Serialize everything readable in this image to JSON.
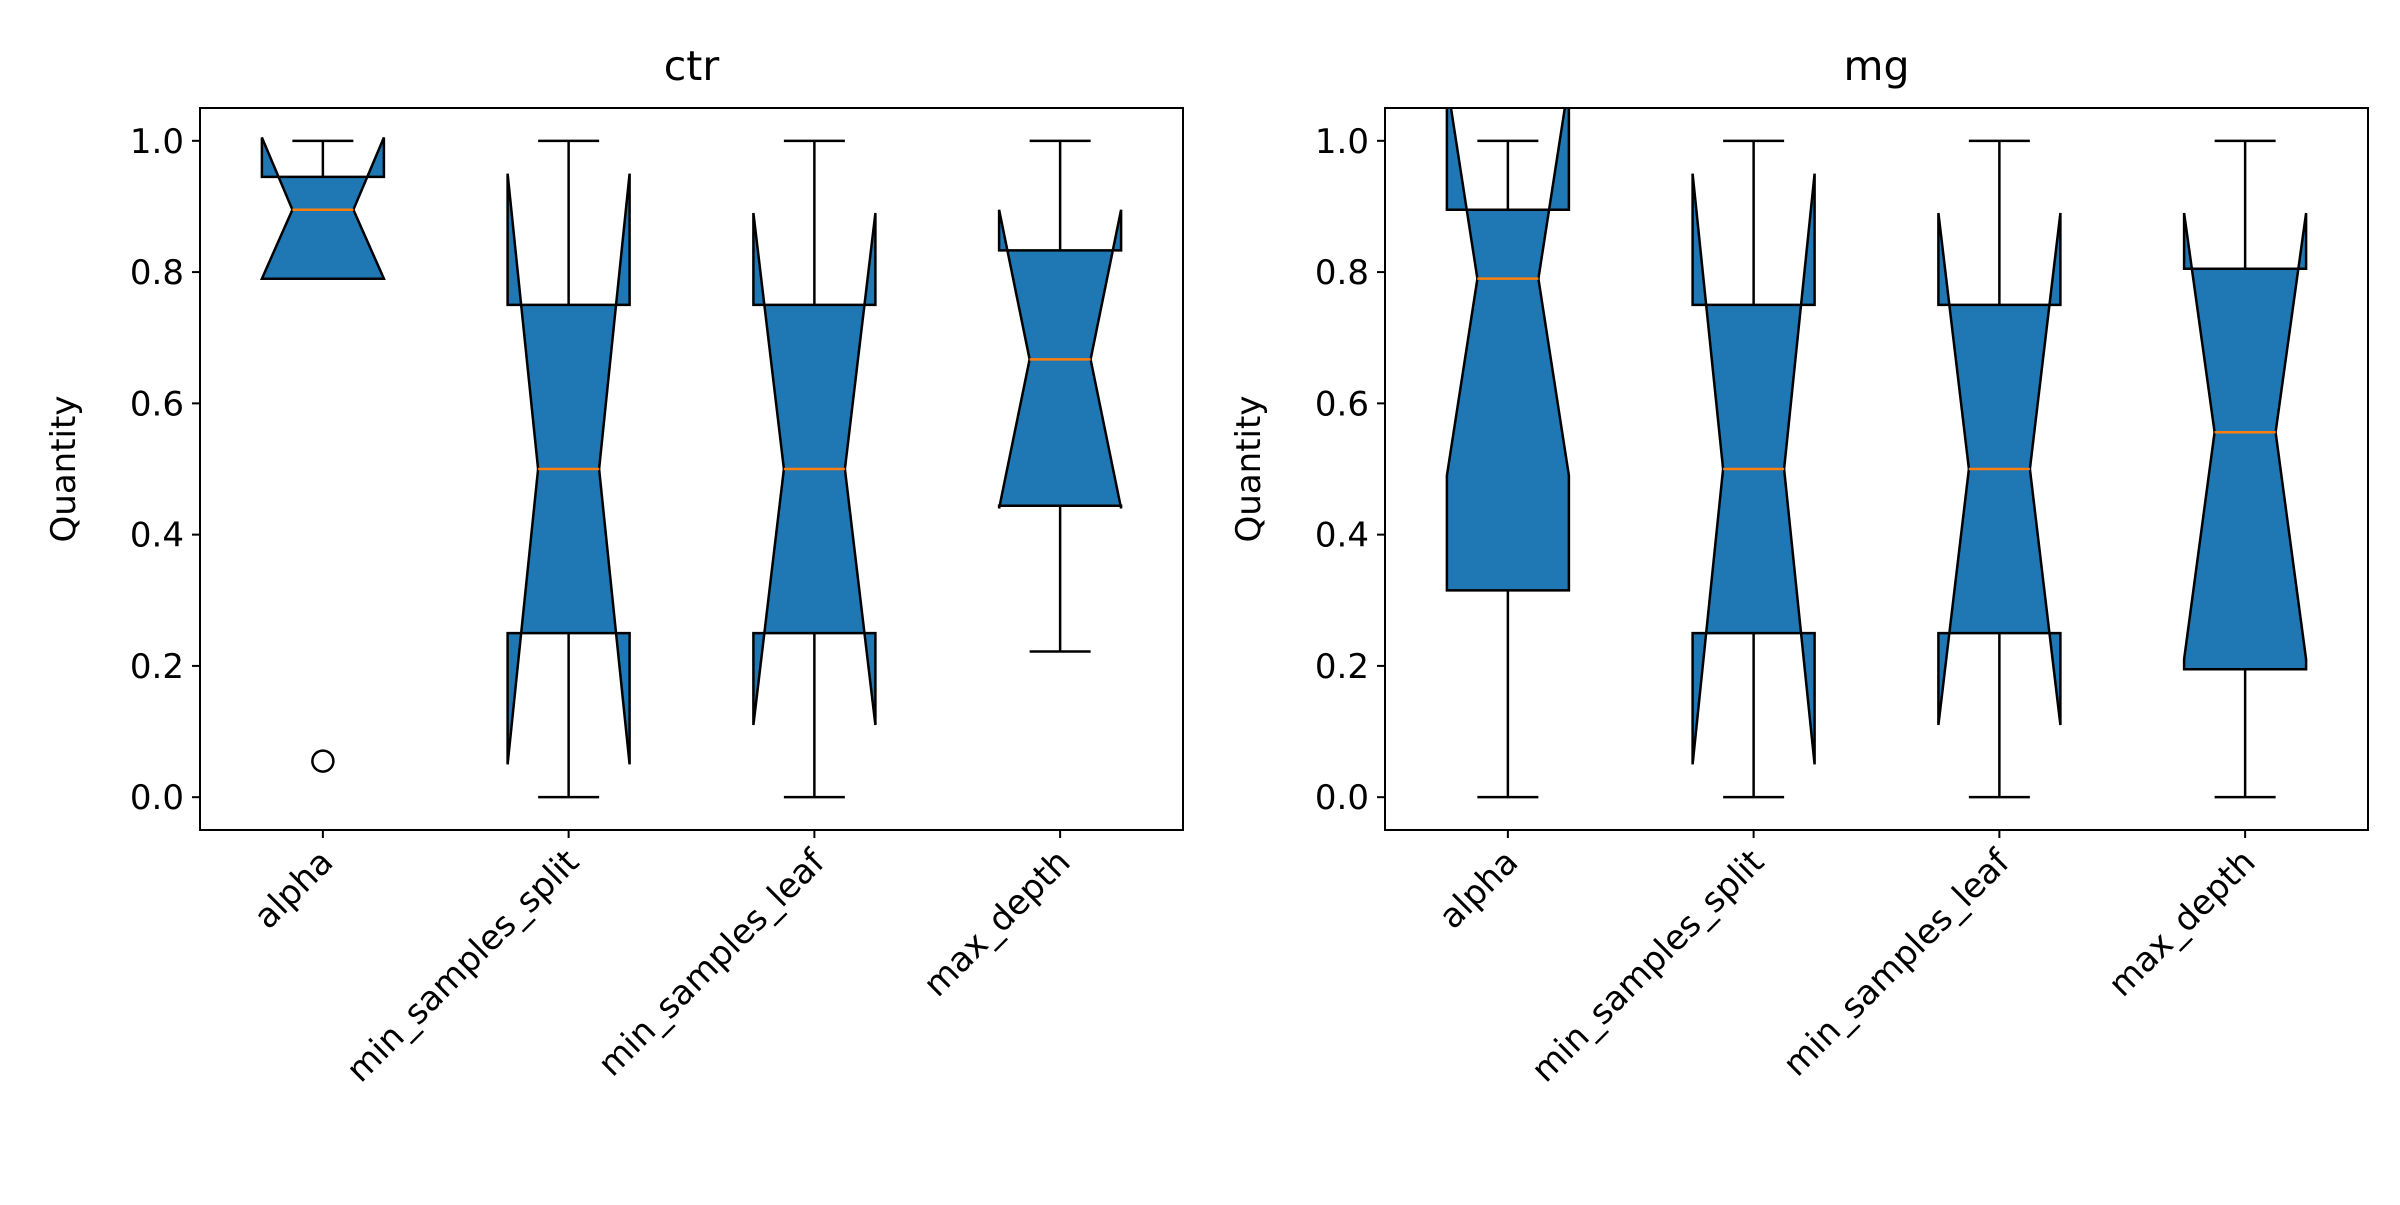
{
  "chart_data": [
    {
      "type": "boxplot",
      "title": "ctr",
      "ylabel": "Quantity",
      "xlabel": "",
      "ylim": [
        -0.05,
        1.05
      ],
      "yticks": [
        0.0,
        0.2,
        0.4,
        0.6,
        0.8,
        1.0
      ],
      "ytick_labels": [
        "0.0",
        "0.2",
        "0.4",
        "0.6",
        "0.8",
        "1.0"
      ],
      "grid": false,
      "notched": true,
      "categories": [
        "alpha",
        "min_samples_split",
        "min_samples_leaf",
        "max_depth"
      ],
      "boxes": [
        {
          "whisker_low": 0.79,
          "q1": 0.79,
          "median": 0.895,
          "q3": 0.945,
          "whisker_high": 1.0,
          "notch_low": 0.79,
          "notch_high": 1.005,
          "outliers": [
            0.055
          ]
        },
        {
          "whisker_low": 0.0,
          "q1": 0.25,
          "median": 0.5,
          "q3": 0.75,
          "whisker_high": 1.0,
          "notch_low": 0.05,
          "notch_high": 0.95,
          "outliers": []
        },
        {
          "whisker_low": 0.0,
          "q1": 0.25,
          "median": 0.5,
          "q3": 0.75,
          "whisker_high": 1.0,
          "notch_low": 0.11,
          "notch_high": 0.89,
          "outliers": []
        },
        {
          "whisker_low": 0.222,
          "q1": 0.444,
          "median": 0.667,
          "q3": 0.833,
          "whisker_high": 1.0,
          "notch_low": 0.44,
          "notch_high": 0.895,
          "outliers": []
        }
      ]
    },
    {
      "type": "boxplot",
      "title": "mg",
      "ylabel": "Quantity",
      "xlabel": "",
      "ylim": [
        -0.05,
        1.05
      ],
      "yticks": [
        0.0,
        0.2,
        0.4,
        0.6,
        0.8,
        1.0
      ],
      "ytick_labels": [
        "0.0",
        "0.2",
        "0.4",
        "0.6",
        "0.8",
        "1.0"
      ],
      "grid": false,
      "notched": true,
      "categories": [
        "alpha",
        "min_samples_split",
        "min_samples_leaf",
        "max_depth"
      ],
      "boxes": [
        {
          "whisker_low": 0.0,
          "q1": 0.315,
          "median": 0.79,
          "q3": 0.895,
          "whisker_high": 1.0,
          "notch_low": 0.49,
          "notch_high": 1.09,
          "outliers": []
        },
        {
          "whisker_low": 0.0,
          "q1": 0.25,
          "median": 0.5,
          "q3": 0.75,
          "whisker_high": 1.0,
          "notch_low": 0.05,
          "notch_high": 0.95,
          "outliers": []
        },
        {
          "whisker_low": 0.0,
          "q1": 0.25,
          "median": 0.5,
          "q3": 0.75,
          "whisker_high": 1.0,
          "notch_low": 0.11,
          "notch_high": 0.89,
          "outliers": []
        },
        {
          "whisker_low": 0.0,
          "q1": 0.195,
          "median": 0.556,
          "q3": 0.805,
          "whisker_high": 1.0,
          "notch_low": 0.21,
          "notch_high": 0.89,
          "outliers": []
        }
      ]
    }
  ],
  "colors": {
    "box_fill": "#1f77b4",
    "median_line": "#ff7f0e",
    "outline": "#000000"
  }
}
